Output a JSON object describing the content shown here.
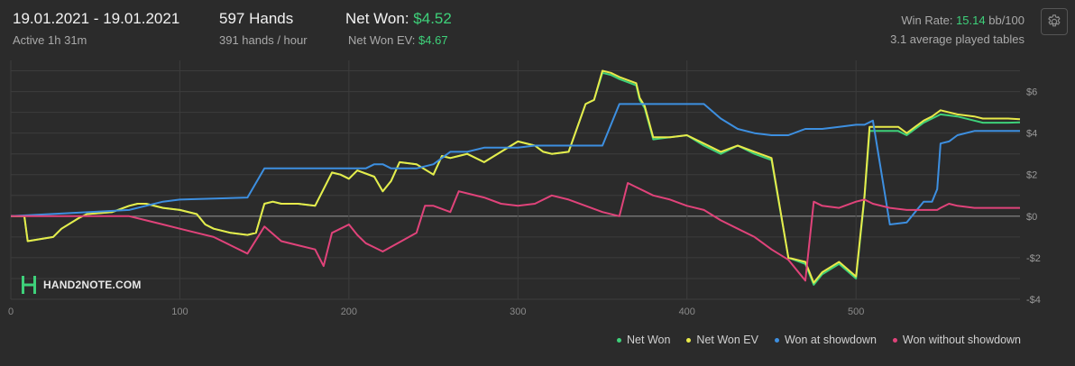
{
  "header": {
    "date_range": "19.01.2021 - 19.01.2021",
    "active": "Active 1h 31m",
    "hands": "597 Hands",
    "hands_per_hour": "391 hands / hour",
    "net_won_label": "Net Won:",
    "net_won_value": "$4.52",
    "net_won_ev_label": "Net Won  EV:",
    "net_won_ev_value": "$4.67",
    "win_rate_label": "Win Rate:",
    "win_rate_value": "15.14",
    "win_rate_unit": "bb/100",
    "avg_tables": "3.1 average played tables"
  },
  "logo_text": "HAND2NOTE.COM",
  "chart_data": {
    "type": "line",
    "xlabel": "",
    "ylabel": "",
    "xlim": [
      0,
      597
    ],
    "ylim": [
      -4,
      7.5
    ],
    "x_ticks": [
      0,
      100,
      200,
      300,
      400,
      500
    ],
    "y_ticks": [
      -4,
      -2,
      0,
      2,
      4,
      6
    ],
    "y_tick_labels": [
      "-$4",
      "-$2",
      "$0",
      "$2",
      "$4",
      "$6"
    ],
    "grid": true,
    "legend_position": "bottom-right",
    "series": [
      {
        "name": "Net Won",
        "color": "#3ed17a",
        "x": [
          0,
          8,
          10,
          25,
          30,
          40,
          45,
          60,
          70,
          75,
          80,
          90,
          100,
          110,
          115,
          120,
          130,
          140,
          145,
          150,
          155,
          160,
          170,
          180,
          190,
          195,
          200,
          205,
          215,
          220,
          225,
          230,
          240,
          250,
          255,
          260,
          270,
          280,
          290,
          300,
          310,
          315,
          320,
          330,
          340,
          345,
          350,
          355,
          360,
          370,
          372,
          375,
          380,
          390,
          400,
          410,
          415,
          420,
          430,
          440,
          450,
          460,
          470,
          475,
          480,
          490,
          500,
          505,
          508,
          520,
          525,
          530,
          535,
          540,
          545,
          550,
          560,
          570,
          575,
          580,
          585,
          590,
          597
        ],
        "y": [
          0,
          0,
          -1.2,
          -1.0,
          -0.6,
          -0.1,
          0.1,
          0.2,
          0.5,
          0.6,
          0.6,
          0.4,
          0.3,
          0.1,
          -0.4,
          -0.6,
          -0.8,
          -0.9,
          -0.8,
          0.6,
          0.7,
          0.6,
          0.6,
          0.5,
          2.1,
          2.0,
          1.8,
          2.2,
          1.9,
          1.2,
          1.7,
          2.6,
          2.5,
          2.0,
          2.9,
          2.8,
          3.0,
          2.6,
          3.1,
          3.6,
          3.4,
          3.1,
          3.0,
          3.1,
          5.4,
          5.6,
          6.9,
          6.8,
          6.6,
          6.3,
          5.6,
          5.2,
          3.7,
          3.8,
          3.9,
          3.4,
          3.2,
          3.0,
          3.4,
          3.0,
          2.7,
          -2.0,
          -2.3,
          -3.3,
          -2.8,
          -2.3,
          -3.0,
          0.9,
          4.1,
          4.1,
          4.1,
          3.9,
          4.2,
          4.5,
          4.7,
          4.9,
          4.8,
          4.6,
          4.5,
          4.5,
          4.5,
          4.5,
          4.52
        ]
      },
      {
        "name": "Net Won  EV",
        "color": "#e8ea4a",
        "x": [
          0,
          8,
          10,
          25,
          30,
          40,
          45,
          60,
          70,
          75,
          80,
          90,
          100,
          110,
          115,
          120,
          130,
          140,
          145,
          150,
          155,
          160,
          170,
          180,
          190,
          195,
          200,
          205,
          215,
          220,
          225,
          230,
          240,
          250,
          255,
          260,
          270,
          280,
          290,
          300,
          310,
          315,
          320,
          330,
          340,
          345,
          350,
          355,
          360,
          370,
          372,
          375,
          380,
          390,
          400,
          410,
          415,
          420,
          430,
          440,
          450,
          460,
          470,
          475,
          480,
          490,
          500,
          505,
          508,
          520,
          525,
          530,
          535,
          540,
          545,
          550,
          560,
          570,
          575,
          580,
          585,
          590,
          597
        ],
        "y": [
          0,
          0,
          -1.2,
          -1.0,
          -0.6,
          -0.1,
          0.1,
          0.2,
          0.5,
          0.6,
          0.6,
          0.4,
          0.3,
          0.1,
          -0.4,
          -0.6,
          -0.8,
          -0.9,
          -0.8,
          0.6,
          0.7,
          0.6,
          0.6,
          0.5,
          2.1,
          2.0,
          1.8,
          2.2,
          1.9,
          1.2,
          1.7,
          2.6,
          2.5,
          2.0,
          2.9,
          2.8,
          3.0,
          2.6,
          3.1,
          3.6,
          3.4,
          3.1,
          3.0,
          3.1,
          5.4,
          5.6,
          7.0,
          6.9,
          6.7,
          6.4,
          5.7,
          5.3,
          3.8,
          3.8,
          3.9,
          3.5,
          3.3,
          3.1,
          3.4,
          3.1,
          2.8,
          -2.0,
          -2.2,
          -3.2,
          -2.7,
          -2.2,
          -2.9,
          1.0,
          4.3,
          4.3,
          4.3,
          4.0,
          4.3,
          4.6,
          4.8,
          5.1,
          4.9,
          4.8,
          4.7,
          4.7,
          4.7,
          4.7,
          4.67
        ]
      },
      {
        "name": "Won at showdown",
        "color": "#3d8fe0",
        "x": [
          0,
          70,
          80,
          90,
          100,
          140,
          150,
          160,
          170,
          190,
          200,
          210,
          215,
          220,
          225,
          240,
          250,
          260,
          270,
          280,
          290,
          300,
          310,
          320,
          330,
          350,
          360,
          370,
          380,
          390,
          400,
          410,
          420,
          430,
          440,
          450,
          460,
          470,
          480,
          490,
          500,
          505,
          510,
          520,
          530,
          540,
          545,
          548,
          550,
          555,
          560,
          570,
          580,
          597
        ],
        "y": [
          0,
          0.3,
          0.5,
          0.7,
          0.8,
          0.9,
          2.3,
          2.3,
          2.3,
          2.3,
          2.3,
          2.3,
          2.5,
          2.5,
          2.3,
          2.3,
          2.5,
          3.1,
          3.1,
          3.3,
          3.3,
          3.3,
          3.4,
          3.4,
          3.4,
          3.4,
          5.4,
          5.4,
          5.4,
          5.4,
          5.4,
          5.4,
          4.7,
          4.2,
          4.0,
          3.9,
          3.9,
          4.2,
          4.2,
          4.3,
          4.4,
          4.4,
          4.6,
          -0.4,
          -0.3,
          0.7,
          0.7,
          1.3,
          3.5,
          3.6,
          3.9,
          4.1,
          4.1,
          4.1
        ]
      },
      {
        "name": "Won without showdown",
        "color": "#e0437a",
        "x": [
          0,
          50,
          70,
          80,
          90,
          100,
          110,
          120,
          130,
          140,
          150,
          160,
          170,
          180,
          185,
          190,
          195,
          200,
          205,
          210,
          215,
          220,
          240,
          245,
          250,
          260,
          265,
          270,
          280,
          290,
          300,
          310,
          320,
          330,
          340,
          350,
          360,
          365,
          370,
          375,
          380,
          390,
          400,
          410,
          420,
          430,
          440,
          450,
          460,
          470,
          475,
          480,
          490,
          500,
          505,
          510,
          520,
          530,
          540,
          545,
          548,
          550,
          555,
          560,
          570,
          580,
          585,
          590,
          597
        ],
        "y": [
          0,
          0,
          0,
          -0.2,
          -0.4,
          -0.6,
          -0.8,
          -1.0,
          -1.4,
          -1.8,
          -0.5,
          -1.2,
          -1.4,
          -1.6,
          -2.4,
          -0.8,
          -0.6,
          -0.4,
          -0.9,
          -1.3,
          -1.5,
          -1.7,
          -0.8,
          0.5,
          0.5,
          0.2,
          1.2,
          1.1,
          0.9,
          0.6,
          0.5,
          0.6,
          1.0,
          0.8,
          0.5,
          0.2,
          0.0,
          1.6,
          1.4,
          1.2,
          1.0,
          0.8,
          0.5,
          0.3,
          -0.2,
          -0.6,
          -1.0,
          -1.6,
          -2.1,
          -3.1,
          0.7,
          0.5,
          0.4,
          0.7,
          0.8,
          0.6,
          0.4,
          0.3,
          0.3,
          0.3,
          0.3,
          0.4,
          0.6,
          0.5,
          0.4,
          0.4,
          0.4,
          0.4,
          0.4
        ]
      }
    ]
  }
}
